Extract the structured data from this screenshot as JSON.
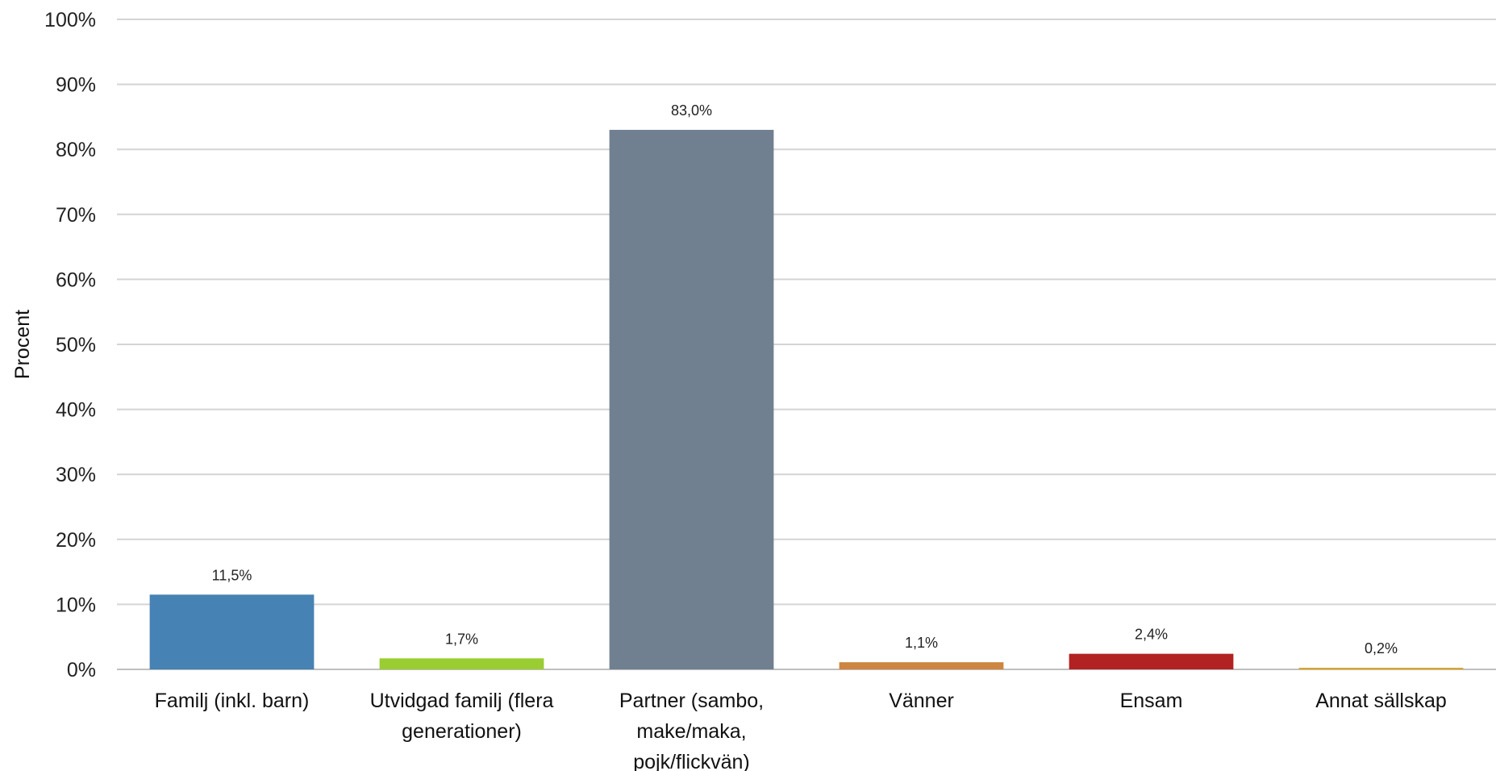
{
  "chart_data": {
    "type": "bar",
    "title": "",
    "xlabel": "",
    "ylabel": "Procent",
    "ylim": [
      0,
      100
    ],
    "y_ticks": [
      "0%",
      "10%",
      "20%",
      "30%",
      "40%",
      "50%",
      "60%",
      "70%",
      "80%",
      "90%",
      "100%"
    ],
    "grid": true,
    "legend": "none",
    "categories": [
      [
        "Familj (inkl. barn)"
      ],
      [
        "Utvidgad familj (flera",
        "generationer)"
      ],
      [
        "Partner (sambo,",
        "make/maka,",
        "pojk/flickvän)"
      ],
      [
        "Vänner"
      ],
      [
        "Ensam"
      ],
      [
        "Annat sällskap"
      ]
    ],
    "values": [
      11.5,
      1.7,
      83.0,
      1.1,
      2.4,
      0.2
    ],
    "data_labels": [
      "11,5%",
      "1,7%",
      "83,0%",
      "1,1%",
      "2,4%",
      "0,2%"
    ],
    "colors": [
      "#4682b4",
      "#9acd32",
      "#708090",
      "#cd853f",
      "#b22222",
      "#daa520"
    ]
  }
}
